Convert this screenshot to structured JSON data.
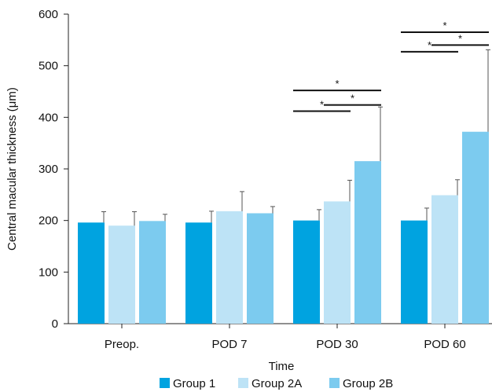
{
  "chart_data": {
    "type": "bar",
    "xlabel": "Time",
    "ylabel": "Central macular thickness (μm)",
    "ylim": [
      0,
      600
    ],
    "yticks": [
      0,
      100,
      200,
      300,
      400,
      500,
      600
    ],
    "categories": [
      "Preop.",
      "POD 7",
      "POD 30",
      "POD 60"
    ],
    "series": [
      {
        "name": "Group 1",
        "color": "#00a3e0",
        "values": [
          196,
          196,
          200,
          200
        ],
        "error": [
          21,
          22,
          21,
          24
        ]
      },
      {
        "name": "Group 2A",
        "color": "#bde3f6",
        "values": [
          190,
          218,
          237,
          249
        ],
        "error": [
          27,
          38,
          41,
          30
        ]
      },
      {
        "name": "Group 2B",
        "color": "#7ccbef",
        "values": [
          199,
          214,
          315,
          372
        ],
        "error": [
          13,
          13,
          105,
          159
        ]
      }
    ],
    "significance": [
      {
        "category": 2,
        "from": 0,
        "to": 1,
        "level": 412,
        "label": "*"
      },
      {
        "category": 2,
        "from": 1,
        "to": 2,
        "level": 424,
        "label": "*"
      },
      {
        "category": 2,
        "from": 0,
        "to": 2,
        "level": 452,
        "label": "*"
      },
      {
        "category": 3,
        "from": 0,
        "to": 1,
        "level": 527,
        "label": "*"
      },
      {
        "category": 3,
        "from": 1,
        "to": 2,
        "level": 540,
        "label": "*"
      },
      {
        "category": 3,
        "from": 0,
        "to": 2,
        "level": 565,
        "label": "*"
      }
    ],
    "legend_position": "bottom"
  }
}
